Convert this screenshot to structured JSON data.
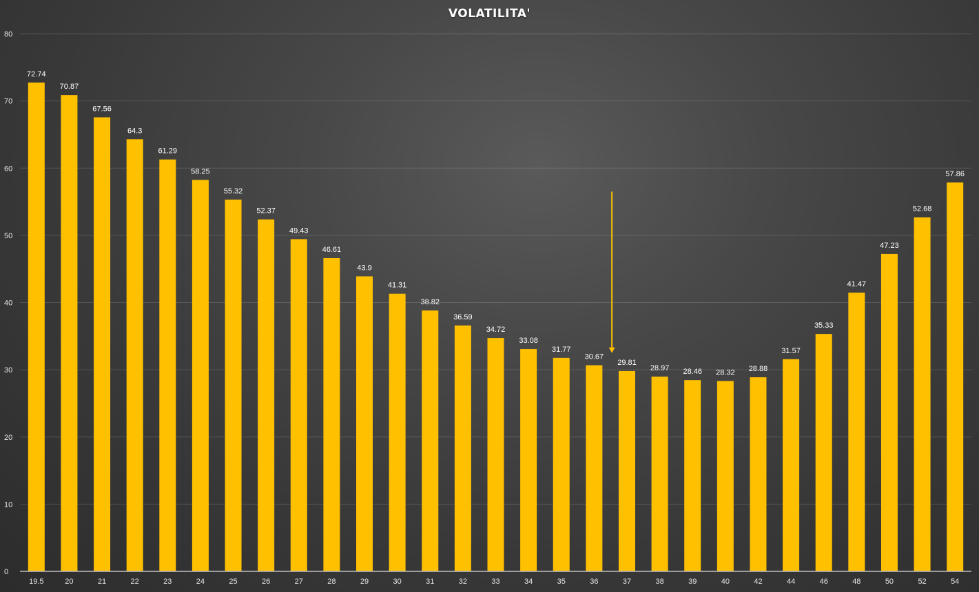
{
  "chart_data": {
    "type": "bar",
    "title": "VOLATILITA'",
    "xlabel": "",
    "ylabel": "",
    "categories": [
      "19.5",
      "20",
      "21",
      "22",
      "23",
      "24",
      "25",
      "26",
      "27",
      "28",
      "29",
      "30",
      "31",
      "32",
      "33",
      "34",
      "35",
      "36",
      "37",
      "38",
      "39",
      "40",
      "42",
      "44",
      "46",
      "48",
      "50",
      "52",
      "54"
    ],
    "values": [
      72.74,
      70.87,
      67.56,
      64.3,
      61.29,
      58.25,
      55.32,
      52.37,
      49.43,
      46.61,
      43.9,
      41.31,
      38.82,
      36.59,
      34.72,
      33.08,
      31.77,
      30.67,
      29.81,
      28.97,
      28.46,
      28.32,
      28.88,
      31.57,
      35.33,
      41.47,
      47.23,
      52.68,
      57.86
    ],
    "data_labels": [
      "72.74",
      "70.87",
      "67.56",
      "64.3",
      "61.29",
      "58.25",
      "55.32",
      "52.37",
      "49.43",
      "46.61",
      "43.9",
      "41.31",
      "38.82",
      "36.59",
      "34.72",
      "33.08",
      "31.77",
      "30.67",
      "29.81",
      "28.97",
      "28.46",
      "28.32",
      "28.88",
      "31.57",
      "35.33",
      "41.47",
      "47.23",
      "52.68",
      "57.86"
    ],
    "ylim": [
      0,
      80
    ],
    "yticks": [
      "0",
      "10",
      "20",
      "30",
      "40",
      "50",
      "60",
      "70",
      "80"
    ],
    "grid": true,
    "legend": "none",
    "bar_color": "#ffc000",
    "annotations": [
      {
        "type": "arrow",
        "points_to": "36-37",
        "from_value": 56.5,
        "to_value": 32.5,
        "color": "#ffc000"
      }
    ]
  }
}
